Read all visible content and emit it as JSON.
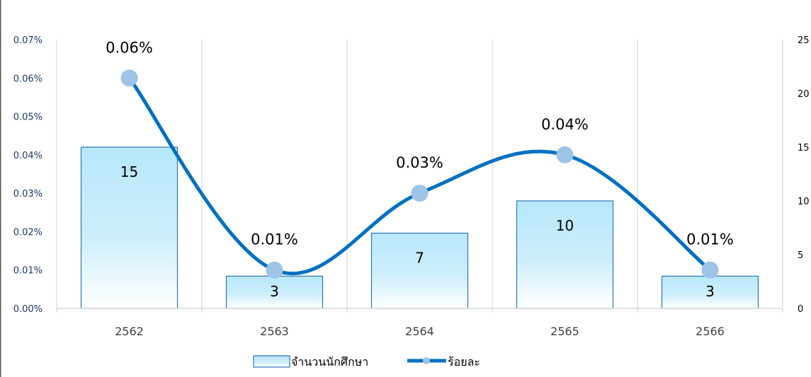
{
  "chart_data": {
    "type": "bar",
    "title": "",
    "xlabel": "",
    "ylabel": "",
    "categories": [
      "2562",
      "2563",
      "2564",
      "2565",
      "2566"
    ],
    "series": [
      {
        "name": "จำนวนนักศึกษา",
        "kind": "bar",
        "axis": "right",
        "values": [
          15,
          3,
          7,
          10,
          3
        ],
        "labels": [
          "15",
          "3",
          "7",
          "10",
          "3"
        ],
        "color": "#bfeafc",
        "border_color": "#2e75b6"
      },
      {
        "name": "ร้อยละ",
        "kind": "line",
        "axis": "left",
        "values": [
          0.06,
          0.01,
          0.03,
          0.04,
          0.01
        ],
        "labels": [
          "0.06%",
          "0.01%",
          "0.03%",
          "0.04%",
          "0.01%"
        ],
        "color": "#0070c0",
        "marker_color": "#9dc3e6"
      }
    ],
    "ylim_left": [
      0,
      0.07
    ],
    "yticks_left": [
      "0.00%",
      "0.01%",
      "0.02%",
      "0.03%",
      "0.04%",
      "0.05%",
      "0.06%",
      "0.07%"
    ],
    "ylim_right": [
      0,
      25
    ],
    "yticks_right": [
      "0",
      "5",
      "10",
      "15",
      "20",
      "25"
    ],
    "grid": "vertical",
    "legend_position": "bottom"
  }
}
